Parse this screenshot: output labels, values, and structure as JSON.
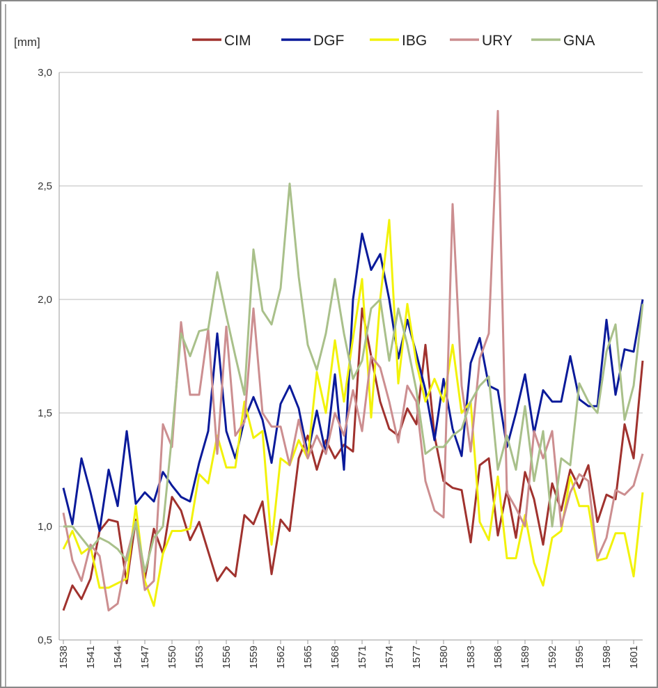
{
  "chart_data": {
    "type": "line",
    "y_label": "[mm]",
    "x": [
      1538,
      1539,
      1540,
      1541,
      1542,
      1543,
      1544,
      1545,
      1546,
      1547,
      1548,
      1549,
      1550,
      1551,
      1552,
      1553,
      1554,
      1555,
      1556,
      1557,
      1558,
      1559,
      1560,
      1561,
      1562,
      1563,
      1564,
      1565,
      1566,
      1567,
      1568,
      1569,
      1570,
      1571,
      1572,
      1573,
      1574,
      1575,
      1576,
      1577,
      1578,
      1579,
      1580,
      1581,
      1582,
      1583,
      1584,
      1585,
      1586,
      1587,
      1588,
      1589,
      1590,
      1591,
      1592,
      1593,
      1594,
      1595,
      1596,
      1597,
      1598,
      1599,
      1600,
      1601,
      1602
    ],
    "xlim": [
      1538,
      1602
    ],
    "xticks": [
      1538,
      1541,
      1544,
      1547,
      1550,
      1553,
      1556,
      1559,
      1562,
      1565,
      1568,
      1571,
      1574,
      1577,
      1580,
      1583,
      1586,
      1589,
      1592,
      1595,
      1598,
      1601
    ],
    "ylim": [
      0.5,
      3.0
    ],
    "yticks": [
      {
        "value": 0.5,
        "label": "0,5"
      },
      {
        "value": 1.0,
        "label": "1,0"
      },
      {
        "value": 1.5,
        "label": "1,5"
      },
      {
        "value": 2.0,
        "label": "2,0"
      },
      {
        "value": 2.5,
        "label": "2,5"
      },
      {
        "value": 3.0,
        "label": "3,0"
      }
    ],
    "grid": true,
    "legend": "top-right",
    "series": [
      {
        "name": "CIM",
        "color": "#a0322e",
        "values": [
          0.63,
          0.74,
          0.68,
          0.77,
          0.98,
          1.03,
          1.02,
          0.75,
          1.03,
          0.77,
          0.99,
          0.88,
          1.13,
          1.07,
          0.94,
          1.02,
          0.89,
          0.76,
          0.82,
          0.78,
          1.05,
          1.01,
          1.11,
          0.79,
          1.03,
          0.98,
          1.3,
          1.4,
          1.25,
          1.38,
          1.3,
          1.36,
          1.33,
          1.96,
          1.75,
          1.55,
          1.43,
          1.4,
          1.52,
          1.45,
          1.8,
          1.4,
          1.2,
          1.17,
          1.16,
          0.93,
          1.27,
          1.3,
          0.96,
          1.16,
          0.95,
          1.24,
          1.12,
          0.92,
          1.19,
          1.07,
          1.25,
          1.17,
          1.27,
          1.02,
          1.14,
          1.12,
          1.45,
          1.3,
          1.73
        ]
      },
      {
        "name": "DGF",
        "color": "#0a1a9a",
        "values": [
          1.17,
          1.01,
          1.3,
          1.15,
          0.98,
          1.25,
          1.09,
          1.42,
          1.1,
          1.15,
          1.11,
          1.24,
          1.18,
          1.13,
          1.11,
          1.28,
          1.42,
          1.85,
          1.42,
          1.3,
          1.47,
          1.57,
          1.47,
          1.28,
          1.54,
          1.62,
          1.52,
          1.32,
          1.51,
          1.32,
          1.67,
          1.25,
          2.0,
          2.29,
          2.13,
          2.2,
          2.0,
          1.74,
          1.91,
          1.76,
          1.6,
          1.38,
          1.65,
          1.43,
          1.31,
          1.72,
          1.83,
          1.62,
          1.6,
          1.35,
          1.5,
          1.67,
          1.41,
          1.6,
          1.55,
          1.55,
          1.75,
          1.56,
          1.53,
          1.53,
          1.91,
          1.58,
          1.78,
          1.77,
          2.0
        ]
      },
      {
        "name": "IBG",
        "color": "#f2f20a",
        "values": [
          0.9,
          0.98,
          0.88,
          0.91,
          0.73,
          0.73,
          0.75,
          0.77,
          1.09,
          0.76,
          0.65,
          0.88,
          0.98,
          0.98,
          0.99,
          1.23,
          1.19,
          1.4,
          1.26,
          1.26,
          1.55,
          1.39,
          1.42,
          0.92,
          1.3,
          1.27,
          1.38,
          1.3,
          1.68,
          1.5,
          1.82,
          1.55,
          1.83,
          2.09,
          1.48,
          2.0,
          2.35,
          1.63,
          1.98,
          1.72,
          1.55,
          1.65,
          1.55,
          1.8,
          1.5,
          1.55,
          1.02,
          0.94,
          1.22,
          0.86,
          0.86,
          1.05,
          0.84,
          0.74,
          0.95,
          0.98,
          1.22,
          1.09,
          1.09,
          0.85,
          0.86,
          0.97,
          0.97,
          0.78,
          1.15
        ]
      },
      {
        "name": "URY",
        "color": "#cc8e90",
        "values": [
          1.06,
          0.85,
          0.76,
          0.92,
          0.87,
          0.63,
          0.66,
          0.87,
          1.02,
          0.72,
          0.76,
          1.45,
          1.35,
          1.9,
          1.58,
          1.58,
          1.87,
          1.32,
          1.88,
          1.4,
          1.46,
          1.96,
          1.5,
          1.44,
          1.44,
          1.27,
          1.47,
          1.3,
          1.4,
          1.32,
          1.5,
          1.4,
          1.6,
          1.42,
          1.75,
          1.7,
          1.55,
          1.37,
          1.62,
          1.55,
          1.2,
          1.07,
          1.04,
          2.42,
          1.62,
          1.33,
          1.74,
          1.85,
          2.83,
          1.15,
          1.08,
          1.0,
          1.42,
          1.3,
          1.42,
          1.0,
          1.15,
          1.23,
          1.2,
          0.86,
          0.95,
          1.16,
          1.14,
          1.18,
          1.32
        ]
      },
      {
        "name": "GNA",
        "color": "#a9c08a",
        "values": [
          1.0,
          1.0,
          0.95,
          0.9,
          0.95,
          0.93,
          0.9,
          0.85,
          1.02,
          0.8,
          0.95,
          1.0,
          1.4,
          1.85,
          1.75,
          1.86,
          1.87,
          2.12,
          1.93,
          1.75,
          1.58,
          2.22,
          1.95,
          1.89,
          2.05,
          2.51,
          2.1,
          1.8,
          1.69,
          1.85,
          2.09,
          1.85,
          1.65,
          1.73,
          1.96,
          2.0,
          1.73,
          1.96,
          1.8,
          1.6,
          1.32,
          1.35,
          1.35,
          1.4,
          1.43,
          1.55,
          1.62,
          1.66,
          1.25,
          1.4,
          1.25,
          1.53,
          1.2,
          1.42,
          1.0,
          1.3,
          1.27,
          1.63,
          1.55,
          1.5,
          1.77,
          1.89,
          1.47,
          1.62,
          1.98
        ]
      }
    ]
  }
}
